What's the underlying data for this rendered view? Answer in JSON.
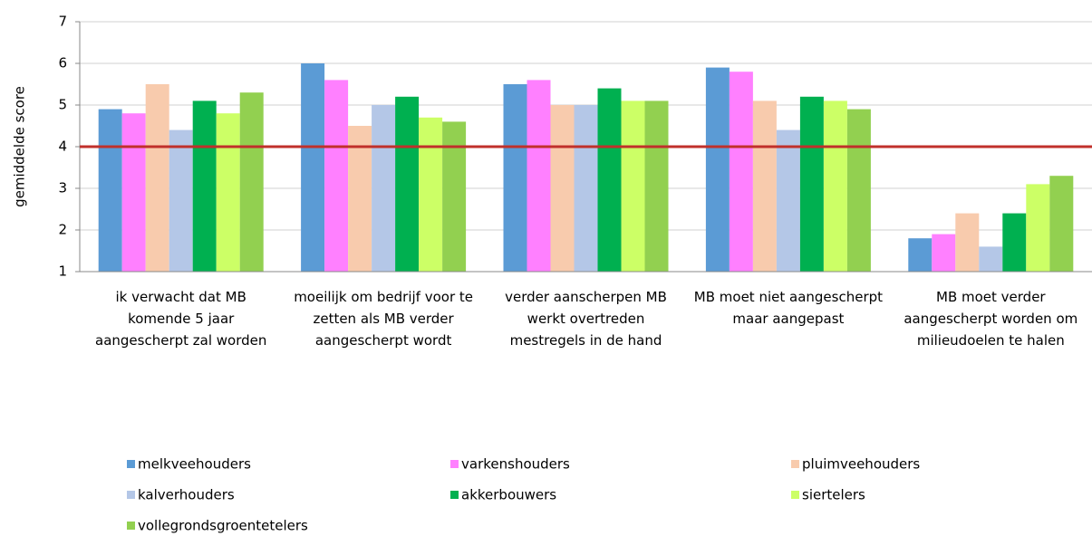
{
  "chart_data": {
    "type": "bar",
    "y_label": "gemiddelde score",
    "categories": [
      "ik verwacht dat MB komende 5 jaar aangescherpt zal worden",
      "moeilijk om bedrijf voor te zetten als MB verder aangescherpt wordt",
      "verder aanscherpen MB werkt overtreden mestregels in de hand",
      "MB moet niet aangescherpt maar aangepast",
      "MB moet verder aangescherpt worden om milieudoelen te halen"
    ],
    "series": [
      {
        "name": "melkveehouders",
        "color": "#5b9bd5",
        "values": [
          4.9,
          6.0,
          5.5,
          5.9,
          1.8
        ]
      },
      {
        "name": "varkenshouders",
        "color": "#ff80ff",
        "values": [
          4.8,
          5.6,
          5.6,
          5.8,
          1.9
        ]
      },
      {
        "name": "pluimveehouders",
        "color": "#f8cbad",
        "values": [
          5.5,
          4.5,
          5.0,
          5.1,
          2.4
        ]
      },
      {
        "name": "kalverhouders",
        "color": "#b4c7e7",
        "values": [
          4.4,
          5.0,
          5.0,
          4.4,
          1.6
        ]
      },
      {
        "name": "akkerbouwers",
        "color": "#00b050",
        "values": [
          5.1,
          5.2,
          5.4,
          5.2,
          2.4
        ]
      },
      {
        "name": "siertelers",
        "color": "#ccff66",
        "values": [
          4.8,
          4.7,
          5.1,
          5.1,
          3.1
        ]
      },
      {
        "name": "vollegrondsgroentetelers",
        "color": "#92d050",
        "values": [
          5.3,
          4.6,
          5.1,
          4.9,
          3.3
        ]
      }
    ],
    "reference_line": {
      "value": 4,
      "color": "#c0302b"
    },
    "ylim": [
      1,
      7
    ],
    "yticks": [
      1,
      2,
      3,
      4,
      5,
      6,
      7
    ],
    "grid": true,
    "legend": "bottom"
  }
}
